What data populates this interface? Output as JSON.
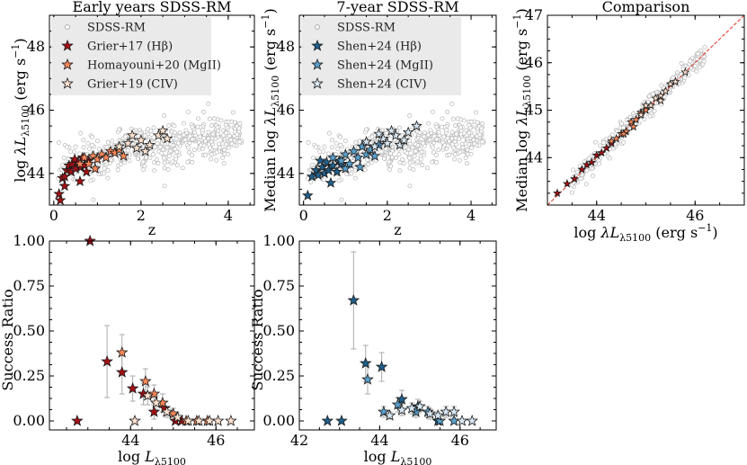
{
  "chart_data": [
    {
      "id": "p1",
      "type": "scatter",
      "title": "Early years SDSS-RM",
      "xlabel": "z",
      "ylabel": "log λL5100 (erg s⁻¹)",
      "xlim": [
        -0.1,
        4.6
      ],
      "ylim": [
        43.0,
        49.0
      ],
      "xticks": [
        0,
        2,
        4
      ],
      "yticks": [
        44,
        46,
        48
      ],
      "legend": {
        "placement": "top-left",
        "entries": [
          {
            "label": "SDSS-RM",
            "marker": "circle",
            "color": "#d9d9d9"
          },
          {
            "label": "Grier+17 (Hβ)",
            "marker": "star",
            "color": "#a50f15"
          },
          {
            "label": "Homayouni+20 (MgII)",
            "marker": "star",
            "color": "#fb8858"
          },
          {
            "label": "Grier+19 (CIV)",
            "marker": "star",
            "color": "#fee2cf"
          }
        ]
      },
      "series": [
        {
          "name": "Grier+17 (Hβ)",
          "color": "#a50f15",
          "points": [
            [
              0.12,
              43.35
            ],
            [
              0.15,
              43.15
            ],
            [
              0.2,
              43.85
            ],
            [
              0.25,
              43.9
            ],
            [
              0.3,
              44.1
            ],
            [
              0.35,
              44.25
            ],
            [
              0.4,
              44.05
            ],
            [
              0.42,
              44.3
            ],
            [
              0.5,
              44.15
            ],
            [
              0.55,
              44.35
            ],
            [
              0.6,
              43.75
            ],
            [
              0.62,
              44.2
            ],
            [
              0.7,
              44.25
            ],
            [
              0.75,
              44.05
            ],
            [
              0.8,
              44.4
            ],
            [
              0.25,
              43.6
            ],
            [
              0.48,
              44.45
            ],
            [
              0.66,
              44.5
            ]
          ]
        },
        {
          "name": "Homayouni+20 (MgII)",
          "color": "#fb8858",
          "points": [
            [
              0.6,
              44.3
            ],
            [
              0.7,
              44.5
            ],
            [
              0.8,
              44.3
            ],
            [
              0.9,
              44.55
            ],
            [
              1.0,
              44.45
            ],
            [
              1.1,
              44.6
            ],
            [
              1.2,
              44.5
            ],
            [
              1.3,
              44.7
            ],
            [
              1.4,
              44.65
            ],
            [
              1.5,
              44.75
            ],
            [
              1.6,
              44.55
            ],
            [
              0.95,
              44.15
            ]
          ]
        },
        {
          "name": "Grier+19 (CIV)",
          "color": "#fee2cf",
          "points": [
            [
              1.5,
              44.85
            ],
            [
              1.7,
              44.95
            ],
            [
              1.9,
              44.8
            ],
            [
              2.0,
              45.05
            ],
            [
              2.2,
              44.9
            ],
            [
              2.4,
              45.2
            ],
            [
              2.6,
              45.1
            ],
            [
              2.1,
              44.7
            ],
            [
              1.8,
              45.2
            ],
            [
              2.5,
              45.35
            ]
          ]
        }
      ]
    },
    {
      "id": "p2",
      "type": "scatter",
      "title": "7-year SDSS-RM",
      "xlabel": "z",
      "ylabel": "Median log λL5100 (erg s⁻¹)",
      "xlim": [
        -0.1,
        4.6
      ],
      "ylim": [
        43.0,
        49.0
      ],
      "xticks": [
        0,
        2,
        4
      ],
      "yticks": [
        44,
        46,
        48
      ],
      "legend": {
        "placement": "top-left",
        "entries": [
          {
            "label": "SDSS-RM",
            "marker": "circle",
            "color": "#d9d9d9"
          },
          {
            "label": "Shen+24 (Hβ)",
            "marker": "star",
            "color": "#1f5f8b"
          },
          {
            "label": "Shen+24 (MgII)",
            "marker": "star",
            "color": "#5aa0cc"
          },
          {
            "label": "Shen+24 (CIV)",
            "marker": "star",
            "color": "#d7e6f2"
          }
        ]
      },
      "series": [
        {
          "name": "Shen+24 (Hβ)",
          "color": "#1f5f8b",
          "points": [
            [
              0.1,
              43.3
            ],
            [
              0.2,
              43.9
            ],
            [
              0.3,
              44.1
            ],
            [
              0.35,
              43.95
            ],
            [
              0.45,
              44.2
            ],
            [
              0.5,
              44.0
            ],
            [
              0.55,
              44.35
            ],
            [
              0.6,
              44.1
            ],
            [
              0.7,
              44.25
            ],
            [
              0.8,
              44.05
            ],
            [
              0.85,
              44.4
            ],
            [
              0.9,
              44.3
            ],
            [
              0.4,
              44.4
            ],
            [
              0.65,
              43.7
            ]
          ]
        },
        {
          "name": "Shen+24 (MgII)",
          "color": "#5aa0cc",
          "points": [
            [
              0.7,
              44.5
            ],
            [
              0.9,
              44.4
            ],
            [
              1.0,
              44.6
            ],
            [
              1.1,
              44.3
            ],
            [
              1.2,
              44.7
            ],
            [
              1.3,
              44.5
            ],
            [
              1.4,
              44.85
            ],
            [
              1.5,
              44.6
            ],
            [
              1.6,
              44.75
            ],
            [
              1.7,
              44.55
            ],
            [
              1.8,
              44.9
            ],
            [
              1.0,
              44.15
            ],
            [
              1.35,
              44.2
            ]
          ]
        },
        {
          "name": "Shen+24 (CIV)",
          "color": "#d7e6f2",
          "points": [
            [
              1.5,
              45.0
            ],
            [
              1.7,
              44.85
            ],
            [
              1.9,
              45.1
            ],
            [
              2.0,
              44.95
            ],
            [
              2.2,
              45.2
            ],
            [
              2.3,
              44.9
            ],
            [
              2.5,
              45.3
            ],
            [
              2.7,
              45.5
            ],
            [
              2.1,
              45.35
            ],
            [
              1.8,
              45.25
            ],
            [
              2.4,
              45.05
            ]
          ]
        }
      ]
    },
    {
      "id": "p3",
      "type": "scatter",
      "title": "Comparison",
      "xlabel": "log λL5100 (erg s⁻¹)",
      "ylabel": "Median log λL5100 (erg s⁻¹)",
      "xlim": [
        43.0,
        47.0
      ],
      "ylim": [
        43.0,
        47.0
      ],
      "xticks": [
        44,
        46
      ],
      "yticks": [
        44,
        45,
        46,
        47
      ],
      "one_to_one_line": true,
      "series": [
        {
          "name": "Hβ",
          "color": "#a50f15",
          "points": [
            [
              43.2,
              43.25
            ],
            [
              43.4,
              43.45
            ],
            [
              43.55,
              43.55
            ],
            [
              43.7,
              43.75
            ],
            [
              43.8,
              43.85
            ],
            [
              43.9,
              43.9
            ],
            [
              44.0,
              44.05
            ],
            [
              44.1,
              44.1
            ],
            [
              44.2,
              44.2
            ],
            [
              44.3,
              44.3
            ]
          ]
        },
        {
          "name": "MgII",
          "color": "#fb8858",
          "points": [
            [
              44.3,
              44.35
            ],
            [
              44.4,
              44.4
            ],
            [
              44.5,
              44.5
            ],
            [
              44.6,
              44.55
            ],
            [
              44.7,
              44.75
            ],
            [
              44.8,
              44.8
            ],
            [
              44.9,
              44.95
            ],
            [
              45.0,
              45.0
            ],
            [
              44.55,
              44.5
            ],
            [
              44.75,
              44.65
            ]
          ]
        },
        {
          "name": "CIV",
          "color": "#fee2cf",
          "points": [
            [
              44.9,
              44.9
            ],
            [
              45.1,
              45.1
            ],
            [
              45.2,
              45.25
            ],
            [
              45.3,
              45.3
            ],
            [
              45.4,
              45.4
            ],
            [
              45.5,
              45.55
            ],
            [
              45.6,
              45.6
            ],
            [
              45.8,
              45.8
            ],
            [
              45.0,
              45.1
            ],
            [
              45.3,
              45.2
            ]
          ]
        }
      ]
    },
    {
      "id": "p4",
      "type": "scatter",
      "title": "",
      "xlabel": "log L5100",
      "ylabel": "Success Ratio",
      "xlim": [
        42.1,
        46.9
      ],
      "ylim": [
        -0.05,
        1.0
      ],
      "xticks": [
        44,
        46
      ],
      "yticks": [
        0.0,
        0.25,
        0.5,
        0.75,
        1.0
      ],
      "ytick_labels": [
        "0.00",
        "0.25",
        "0.50",
        "0.75",
        "1.00"
      ],
      "series": [
        {
          "name": "Grier+17 (Hβ)",
          "color": "#a50f15",
          "points": [
            [
              42.75,
              0.0,
              0.0
            ],
            [
              43.05,
              1.0,
              0.0
            ],
            [
              43.45,
              0.33,
              0.2
            ],
            [
              43.8,
              0.27,
              0.12
            ],
            [
              44.05,
              0.18,
              0.07
            ],
            [
              44.3,
              0.15,
              0.06
            ],
            [
              44.55,
              0.05,
              0.04
            ],
            [
              44.8,
              0.07,
              0.04
            ],
            [
              45.05,
              0.0,
              0.0
            ],
            [
              45.2,
              0.0,
              0.0
            ]
          ]
        },
        {
          "name": "Homayouni+20 (MgII)",
          "color": "#fb8858",
          "points": [
            [
              43.8,
              0.38,
              0.1
            ],
            [
              44.35,
              0.22,
              0.07
            ],
            [
              44.55,
              0.15,
              0.05
            ],
            [
              44.75,
              0.1,
              0.05
            ],
            [
              45.0,
              0.04,
              0.03
            ],
            [
              45.3,
              0.0,
              0.0
            ],
            [
              45.55,
              0.0,
              0.0
            ],
            [
              45.8,
              0.0,
              0.0
            ]
          ]
        },
        {
          "name": "Grier+19 (CIV)",
          "color": "#fee2cf",
          "points": [
            [
              44.1,
              0.0,
              0.0
            ],
            [
              44.4,
              0.14,
              0.05
            ],
            [
              44.6,
              0.1,
              0.04
            ],
            [
              44.85,
              0.05,
              0.03
            ],
            [
              45.1,
              0.02,
              0.02
            ],
            [
              45.35,
              0.0,
              0.0
            ],
            [
              45.6,
              0.0,
              0.0
            ],
            [
              45.85,
              0.0,
              0.0
            ],
            [
              46.05,
              0.0,
              0.0
            ],
            [
              46.35,
              0.0,
              0.0
            ]
          ]
        }
      ]
    },
    {
      "id": "p5",
      "type": "scatter",
      "title": "",
      "xlabel": "log L5100",
      "ylabel": "Success Ratio",
      "xlim": [
        42.0,
        46.9
      ],
      "ylim": [
        -0.05,
        1.0
      ],
      "xticks": [
        42,
        44,
        46
      ],
      "yticks": [
        0.0,
        0.25,
        0.5,
        0.75,
        1.0
      ],
      "ytick_labels": [
        "0.00",
        "0.25",
        "0.50",
        "0.75",
        "1.00"
      ],
      "series": [
        {
          "name": "Shen+24 (Hβ)",
          "color": "#1f5f8b",
          "points": [
            [
              42.7,
              0.0,
              0.0
            ],
            [
              43.05,
              0.0,
              0.0
            ],
            [
              43.35,
              0.67,
              0.27
            ],
            [
              43.65,
              0.32,
              0.1
            ],
            [
              44.05,
              0.3,
              0.08
            ],
            [
              44.55,
              0.12,
              0.05
            ],
            [
              44.95,
              0.08,
              0.04
            ],
            [
              45.45,
              0.0,
              0.0
            ]
          ]
        },
        {
          "name": "Shen+24 (MgII)",
          "color": "#5aa0cc",
          "points": [
            [
              43.7,
              0.23,
              0.08
            ],
            [
              44.1,
              0.05,
              0.03
            ],
            [
              44.45,
              0.09,
              0.04
            ],
            [
              44.9,
              0.05,
              0.03
            ],
            [
              45.2,
              0.05,
              0.03
            ],
            [
              45.5,
              0.0,
              0.0
            ],
            [
              45.85,
              0.0,
              0.0
            ]
          ]
        },
        {
          "name": "Shen+24 (CIV)",
          "color": "#d7e6f2",
          "points": [
            [
              44.25,
              0.03,
              0.02
            ],
            [
              44.55,
              0.06,
              0.03
            ],
            [
              44.8,
              0.07,
              0.03
            ],
            [
              45.0,
              0.08,
              0.03
            ],
            [
              45.25,
              0.04,
              0.03
            ],
            [
              45.45,
              0.03,
              0.02
            ],
            [
              45.65,
              0.05,
              0.03
            ],
            [
              45.85,
              0.05,
              0.03
            ],
            [
              46.05,
              0.0,
              0.0
            ],
            [
              46.3,
              0.0,
              0.0
            ]
          ]
        }
      ]
    }
  ],
  "mathtext": {
    "label_prefix_log": "log",
    "lambda_L": "λL",
    "L": "L",
    "sub_5100": "λ5100",
    "unit_open": "(erg s",
    "unit_exp": "−1",
    "unit_close": ")",
    "median": "Median"
  }
}
